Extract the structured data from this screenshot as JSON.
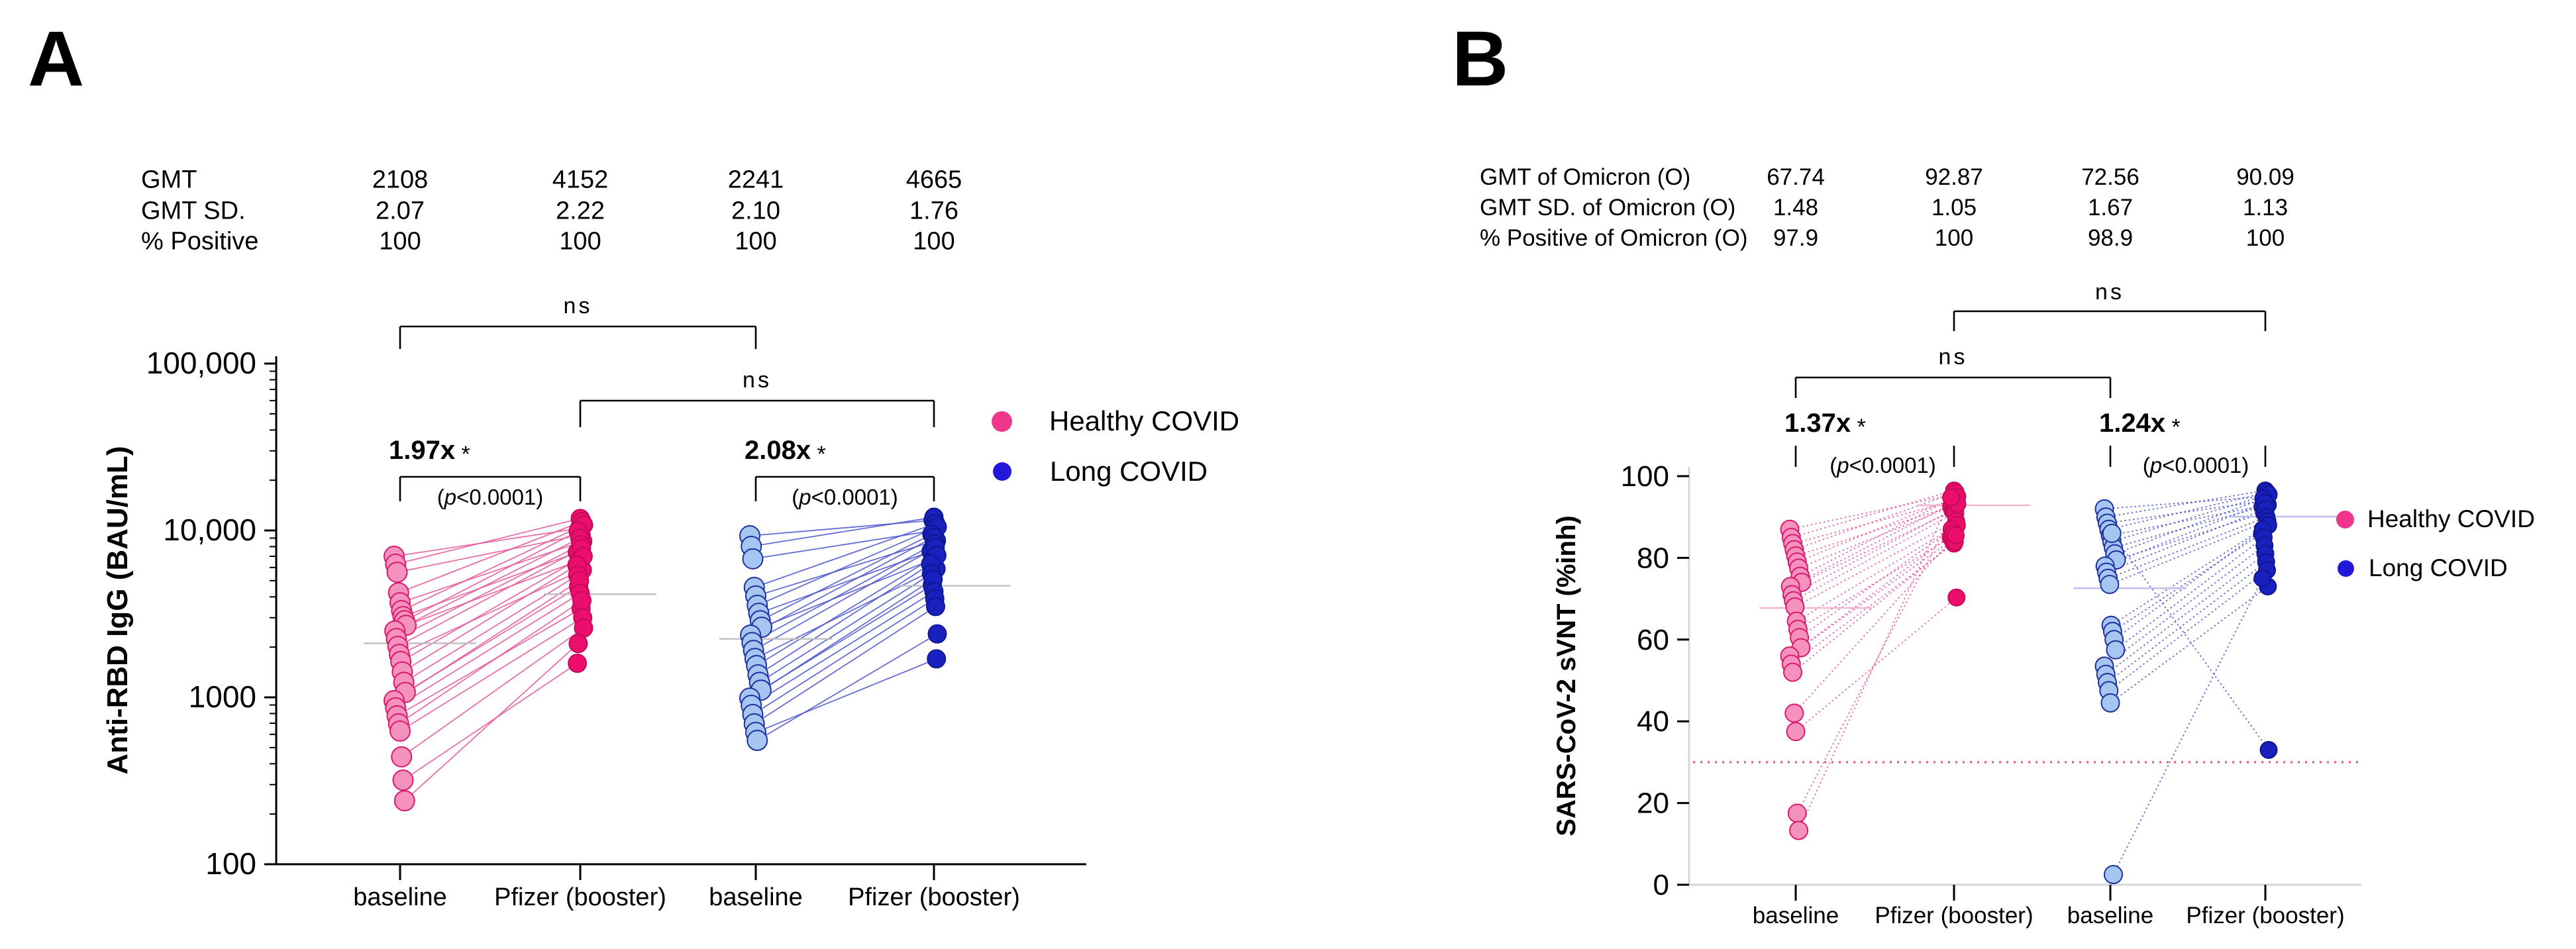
{
  "panels": [
    {
      "label": "A",
      "table": {
        "rows": [
          {
            "label": "GMT",
            "values": [
              "2108",
              "4152",
              "2241",
              "4665"
            ]
          },
          {
            "label": "GMT SD.",
            "values": [
              "2.07",
              "2.22",
              "2.10",
              "1.76"
            ]
          },
          {
            "label": "% Positive",
            "values": [
              "100",
              "100",
              "100",
              "100"
            ]
          }
        ]
      },
      "legend": [
        {
          "label": "Healthy COVID",
          "color_key": "legend_healthy"
        },
        {
          "label": "Long COVID",
          "color_key": "legend_long"
        }
      ]
    },
    {
      "label": "B",
      "table": {
        "rows": [
          {
            "label": "GMT of Omicron (O)",
            "values": [
              "67.74",
              "92.87",
              "72.56",
              "90.09"
            ]
          },
          {
            "label": "GMT SD. of Omicron (O)",
            "values": [
              "1.48",
              "1.05",
              "1.67",
              "1.13"
            ]
          },
          {
            "label": "% Positive of Omicron (O)",
            "values": [
              "97.9",
              "100",
              "98.9",
              "100"
            ]
          }
        ]
      },
      "legend": [
        {
          "label": "Healthy COVID",
          "color_key": "legend_healthy"
        },
        {
          "label": "Long COVID",
          "color_key": "legend_long"
        }
      ]
    }
  ],
  "chart_data": [
    {
      "type": "scatter",
      "subtype": "paired-before-after-lines",
      "title": "",
      "xlabel": "",
      "ylabel": "Anti-RBD IgG (BAU/mL)",
      "yscale": "log",
      "ylim": [
        100,
        100000
      ],
      "ytick_values": [
        100,
        1000,
        10000,
        100000
      ],
      "ytick_labels": [
        "100",
        "1000",
        "10,000",
        "100,000"
      ],
      "categories": [
        "baseline",
        "Pfizer (booster)",
        "baseline",
        "Pfizer (booster)"
      ],
      "grid": false,
      "legend_position": "right",
      "series": [
        {
          "name": "Healthy COVID",
          "gmt": [
            2108,
            4152
          ],
          "pairs": [
            [
              7000,
              10300
            ],
            [
              6280,
              11800
            ],
            [
              5620,
              9400
            ],
            [
              4230,
              11300
            ],
            [
              3690,
              8600
            ],
            [
              3310,
              10800
            ],
            [
              3050,
              7400
            ],
            [
              2880,
              9900
            ],
            [
              2700,
              6600
            ],
            [
              2500,
              9000
            ],
            [
              2250,
              8200
            ],
            [
              2020,
              7800
            ],
            [
              1810,
              5800
            ],
            [
              1640,
              7000
            ],
            [
              1420,
              6200
            ],
            [
              1230,
              5400
            ],
            [
              1070,
              4600
            ],
            [
              955,
              5000
            ],
            [
              865,
              4200
            ],
            [
              775,
              3400
            ],
            [
              694,
              3800
            ],
            [
              628,
              3000
            ],
            [
              440,
              2600
            ],
            [
              319,
              1600
            ],
            [
              240,
              2100
            ]
          ]
        },
        {
          "name": "Long COVID",
          "gmt": [
            2241,
            4665
          ],
          "pairs": [
            [
              9290,
              11500
            ],
            [
              8030,
              12000
            ],
            [
              6760,
              10000
            ],
            [
              4560,
              11000
            ],
            [
              4050,
              8700
            ],
            [
              3560,
              10500
            ],
            [
              3190,
              7500
            ],
            [
              2880,
              9500
            ],
            [
              2630,
              6700
            ],
            [
              2360,
              9100
            ],
            [
              2130,
              8300
            ],
            [
              1910,
              7900
            ],
            [
              1710,
              5900
            ],
            [
              1550,
              7100
            ],
            [
              1365,
              6300
            ],
            [
              1230,
              5500
            ],
            [
              1105,
              4700
            ],
            [
              990,
              5100
            ],
            [
              896,
              4300
            ],
            [
              789,
              3900
            ],
            [
              694,
              3500
            ],
            [
              616,
              1700
            ],
            [
              552,
              2400
            ]
          ]
        }
      ],
      "annotations": {
        "ns": [
          {
            "label": "ns",
            "from_col": 0,
            "to_col": 2
          },
          {
            "label": "ns",
            "from_col": 1,
            "to_col": 3
          }
        ],
        "fold": [
          {
            "label": "1.97x",
            "star": "*",
            "p_label": "(p<0.0001)",
            "from_col": 0,
            "to_col": 1
          },
          {
            "label": "2.08x",
            "star": "*",
            "p_label": "(p<0.0001)",
            "from_col": 2,
            "to_col": 3
          }
        ]
      }
    },
    {
      "type": "scatter",
      "subtype": "paired-before-after-lines",
      "title": "",
      "xlabel": "",
      "ylabel": "SARS-CoV-2 sVNT (%inh)",
      "yscale": "linear",
      "ylim": [
        0,
        100
      ],
      "ytick_values": [
        0,
        20,
        40,
        60,
        80,
        100
      ],
      "ytick_labels": [
        "0",
        "20",
        "40",
        "60",
        "80",
        "100"
      ],
      "categories": [
        "baseline",
        "Pfizer (booster)",
        "baseline",
        "Pfizer (booster)"
      ],
      "grid": false,
      "legend_position": "right",
      "threshold_line": 30,
      "series": [
        {
          "name": "Healthy COVID",
          "gmt": [
            67.74,
            92.87
          ],
          "pairs": [
            [
              87,
              95.5
            ],
            [
              85,
              96.5
            ],
            [
              83.5,
              94
            ],
            [
              82,
              96
            ],
            [
              80.5,
              93
            ],
            [
              79,
              95
            ],
            [
              77.5,
              92.5
            ],
            [
              75.5,
              94.5
            ],
            [
              74,
              91.5
            ],
            [
              73,
              93.5
            ],
            [
              71,
              92
            ],
            [
              69.5,
              91
            ],
            [
              68,
              89
            ],
            [
              64.5,
              88
            ],
            [
              62.5,
              85
            ],
            [
              60.5,
              87
            ],
            [
              58,
              84.5
            ],
            [
              56,
              86
            ],
            [
              54,
              83.5
            ],
            [
              52,
              84
            ],
            [
              42,
              85.5
            ],
            [
              37.5,
              70.3
            ],
            [
              17.5,
              93.2
            ],
            [
              13.3,
              94.8
            ]
          ]
        },
        {
          "name": "Long COVID",
          "gmt": [
            72.56,
            90.09
          ],
          "pairs": [
            [
              92,
              95
            ],
            [
              90,
              96.5
            ],
            [
              88.5,
              94
            ],
            [
              87,
              96
            ],
            [
              85.5,
              93
            ],
            [
              84,
              95.5
            ],
            [
              82.5,
              92.5
            ],
            [
              81,
              94.5
            ],
            [
              79.5,
              91
            ],
            [
              78,
              93.5
            ],
            [
              76.5,
              92
            ],
            [
              75,
              90
            ],
            [
              73.5,
              89
            ],
            [
              63.5,
              88
            ],
            [
              62,
              86
            ],
            [
              60,
              87
            ],
            [
              57.5,
              85
            ],
            [
              53.5,
              83
            ],
            [
              51.5,
              81
            ],
            [
              49.5,
              79
            ],
            [
              47.5,
              77
            ],
            [
              44.5,
              73
            ],
            [
              86,
              33
            ],
            [
              2.5,
              75
            ]
          ]
        }
      ],
      "annotations": {
        "ns": [
          {
            "label": "ns",
            "from_col": 1,
            "to_col": 3
          },
          {
            "label": "ns",
            "from_col": 0,
            "to_col": 2
          }
        ],
        "fold": [
          {
            "label": "1.37x",
            "star": "*",
            "p_label": "(p<0.0001)",
            "from_col": 0,
            "to_col": 1
          },
          {
            "label": "1.24x",
            "star": "*",
            "p_label": "(p<0.0001)",
            "from_col": 2,
            "to_col": 3
          }
        ]
      }
    }
  ],
  "colors": {
    "legend_healthy": "#F0368C",
    "legend_long": "#2118D9",
    "healthy_baseline_fill": "#F492BD",
    "healthy_baseline_stroke": "#D81B70",
    "healthy_booster_fill": "#EC0E6C",
    "healthy_booster_stroke": "#C50A5C",
    "healthy_line": "#E5559B",
    "long_baseline_fill": "#A5C6F1",
    "long_baseline_stroke": "#20309E",
    "long_booster_fill": "#1820BE",
    "long_booster_stroke": "#101690",
    "long_line": "#4853CE",
    "threshold": "#EF5878",
    "gmt_line_gray": "#BDBDBD",
    "gmt_line_healthy": "#F2AFC9",
    "gmt_line_long": "#B6B8EA",
    "axis_black": "#000000",
    "axis_light": "#D6D6D6",
    "text": "#000000"
  }
}
